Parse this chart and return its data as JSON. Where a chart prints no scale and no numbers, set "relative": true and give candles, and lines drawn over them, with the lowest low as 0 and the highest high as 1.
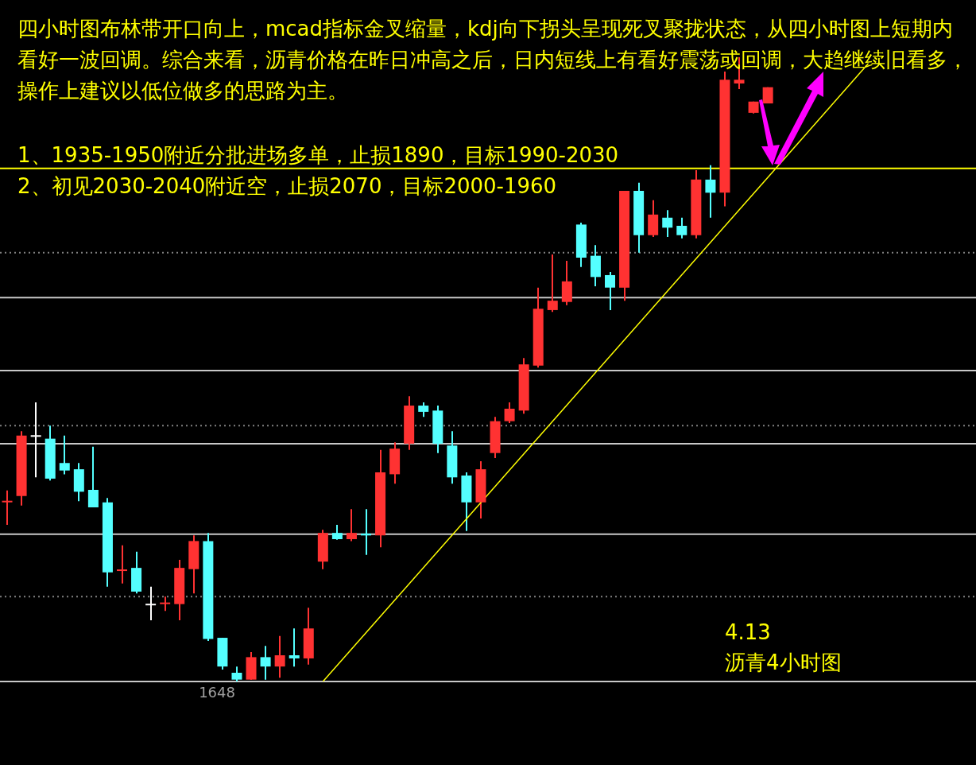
{
  "chart_data": {
    "type": "candlestick",
    "relative": true,
    "categories": [
      null,
      null,
      null,
      null,
      null,
      null,
      null,
      null,
      null,
      null,
      null,
      null,
      null,
      null,
      null,
      null,
      null,
      null,
      null,
      null,
      null,
      null,
      null,
      null,
      null,
      null,
      null,
      null,
      null,
      null,
      null,
      null,
      null,
      null,
      null,
      null,
      null,
      null,
      null,
      null,
      null,
      null,
      null,
      null,
      null,
      null,
      null,
      null,
      null,
      null,
      null,
      null,
      null,
      null,
      null,
      null,
      null,
      null,
      null,
      null,
      null,
      null,
      null,
      null,
      null,
      null,
      null,
      null
    ],
    "ohlc": [
      [
        0.287,
        0.306,
        0.251,
        0.287
      ],
      [
        0.297,
        0.401,
        0.282,
        0.394
      ],
      [
        0.392,
        0.447,
        0.327,
        0.392
      ],
      [
        0.389,
        0.41,
        0.322,
        0.325
      ],
      [
        0.35,
        0.394,
        0.332,
        0.338
      ],
      [
        0.34,
        0.35,
        0.289,
        0.304
      ],
      [
        0.307,
        0.376,
        0.279,
        0.279
      ],
      [
        0.287,
        0.294,
        0.152,
        0.175
      ],
      [
        0.177,
        0.218,
        0.157,
        0.177
      ],
      [
        0.182,
        0.208,
        0.141,
        0.144
      ],
      [
        0.122,
        0.152,
        0.098,
        0.122
      ],
      [
        0.124,
        0.136,
        0.113,
        0.124
      ],
      [
        0.124,
        0.195,
        0.098,
        0.182
      ],
      [
        0.18,
        0.234,
        0.141,
        0.225
      ],
      [
        0.225,
        0.238,
        0.065,
        0.068
      ],
      [
        0.07,
        0.07,
        0.019,
        0.024
      ],
      [
        0.014,
        0.024,
        0,
        0.003
      ],
      [
        0.003,
        0.047,
        0.003,
        0.039
      ],
      [
        0.039,
        0.057,
        0.003,
        0.024
      ],
      [
        0.024,
        0.073,
        0.006,
        0.042
      ],
      [
        0.042,
        0.085,
        0.024,
        0.037
      ],
      [
        0.037,
        0.118,
        0.027,
        0.085
      ],
      [
        0.192,
        0.243,
        0.18,
        0.238
      ],
      [
        0.238,
        0.251,
        0.227,
        0.228
      ],
      [
        0.228,
        0.276,
        0.225,
        0.238
      ],
      [
        0.237,
        0.276,
        0.203,
        0.234
      ],
      [
        0.234,
        0.371,
        0.215,
        0.335
      ],
      [
        0.332,
        0.383,
        0.317,
        0.373
      ],
      [
        0.381,
        0.457,
        0.371,
        0.442
      ],
      [
        0.442,
        0.447,
        0.424,
        0.432
      ],
      [
        0.434,
        0.442,
        0.366,
        0.381
      ],
      [
        0.378,
        0.401,
        0.317,
        0.327
      ],
      [
        0.33,
        0.335,
        0.241,
        0.287
      ],
      [
        0.287,
        0.353,
        0.261,
        0.34
      ],
      [
        0.366,
        0.424,
        0.358,
        0.417
      ],
      [
        0.417,
        0.447,
        0.414,
        0.437
      ],
      [
        0.434,
        0.518,
        0.429,
        0.508
      ],
      [
        0.506,
        0.631,
        0.503,
        0.597
      ],
      [
        0.595,
        0.684,
        0.592,
        0.61
      ],
      [
        0.608,
        0.674,
        0.603,
        0.641
      ],
      [
        0.732,
        0.735,
        0.664,
        0.679
      ],
      [
        0.682,
        0.699,
        0.633,
        0.648
      ],
      [
        0.651,
        0.656,
        0.595,
        0.631
      ],
      [
        0.631,
        0.786,
        0.61,
        0.786
      ],
      [
        0.786,
        0.799,
        0.687,
        0.715
      ],
      [
        0.715,
        0.771,
        0.712,
        0.748
      ],
      [
        0.743,
        0.755,
        0.712,
        0.727
      ],
      [
        0.73,
        0.743,
        0.71,
        0.715
      ],
      [
        0.715,
        0.819,
        0.71,
        0.804
      ],
      [
        0.804,
        0.827,
        0.743,
        0.783
      ],
      [
        0.783,
        0.977,
        0.761,
        0.964
      ],
      [
        0.958,
        1,
        0.949,
        0.964
      ],
      [
        0.911,
        0.929,
        0.91,
        0.929
      ],
      [
        0.926,
        0.952,
        0.926,
        0.952
      ],
      null,
      null,
      null,
      null,
      null,
      null,
      null,
      null,
      null,
      null,
      null,
      null,
      null,
      null
    ],
    "colors": [
      "#ff3232",
      "#ff3232",
      "#ffffff",
      "#54ffff",
      "#54ffff",
      "#54ffff",
      "#54ffff",
      "#54ffff",
      "#ff3232",
      "#54ffff",
      "#ffffff",
      "#ff3232",
      "#ff3232",
      "#ff3232",
      "#54ffff",
      "#54ffff",
      "#54ffff",
      "#ff3232",
      "#54ffff",
      "#ff3232",
      "#54ffff",
      "#ff3232",
      "#ff3232",
      "#54ffff",
      "#ff3232",
      "#54ffff",
      "#ff3232",
      "#ff3232",
      "#ff3232",
      "#54ffff",
      "#54ffff",
      "#54ffff",
      "#54ffff",
      "#ff3232",
      "#ff3232",
      "#ff3232",
      "#ff3232",
      "#ff3232",
      "#ff3232",
      "#ff3232",
      "#54ffff",
      "#54ffff",
      "#54ffff",
      "#ff3232",
      "#54ffff",
      "#ff3232",
      "#54ffff",
      "#54ffff",
      "#ff3232",
      "#54ffff",
      "#ff3232",
      "#ff3232",
      "#ff3232",
      "#ff3232",
      null,
      null,
      null,
      null,
      null,
      null,
      null,
      null,
      null,
      null,
      null,
      null,
      null,
      null
    ],
    "series": [
      {
        "type": "line",
        "color": "#ffff00",
        "values": [
          null,
          null,
          null,
          null,
          null,
          null,
          null,
          null,
          null,
          null,
          null,
          null,
          null,
          null,
          null,
          null,
          null,
          null,
          null,
          null,
          null,
          null,
          0,
          null,
          null,
          null,
          null,
          null,
          null,
          null,
          null,
          null,
          null,
          null,
          null,
          null,
          null,
          null,
          null,
          null,
          null,
          null,
          null,
          null,
          null,
          null,
          null,
          null,
          null,
          null,
          null,
          null,
          null,
          null,
          null,
          null,
          null,
          null,
          null,
          null,
          0.99,
          null,
          null,
          null,
          null,
          null,
          null,
          null
        ]
      }
    ],
    "ref_lines": [
      {
        "axis": "y",
        "value": 0.822,
        "color": "#ffff00",
        "line_style": "solid"
      },
      {
        "axis": "y",
        "value": 0.687,
        "color": "#808080",
        "line_style": "dotted"
      },
      {
        "axis": "y",
        "value": 0.615,
        "color": "#c8c8c8",
        "line_style": "solid"
      },
      {
        "axis": "y",
        "value": 0.498,
        "color": "#c8c8c8",
        "line_style": "solid"
      },
      {
        "axis": "y",
        "value": 0.41,
        "color": "#808080",
        "line_style": "dotted"
      },
      {
        "axis": "y",
        "value": 0.381,
        "color": "#c8c8c8",
        "line_style": "solid"
      },
      {
        "axis": "y",
        "value": 0.236,
        "color": "#c8c8c8",
        "line_style": "solid"
      },
      {
        "axis": "y",
        "value": 0.136,
        "color": "#808080",
        "line_style": "dotted"
      },
      {
        "axis": "y",
        "value": 0,
        "color": "#c8c8c8",
        "line_style": "solid"
      }
    ],
    "annotations": [
      "四小时图布林带开口向上，mcad指标金叉缩量，kdj向下拐头呈现死叉聚拢状态，从四小时图上短期内看好一波回调。综合来看，沥青价格在昨日冲高之后，日内短线上有看好震荡或回调，大趋继续旧看多，操作上建议以低位做多的思路为主。",
      "1、1935-1950附近分批进场多单，止损1890，目标1990-2030",
      "2、初见2030-2040附近空，止损2070，目标2000-1960",
      "4.13",
      "沥青4小时图",
      {
        "text": "1648",
        "y": 0
      }
    ]
  }
}
